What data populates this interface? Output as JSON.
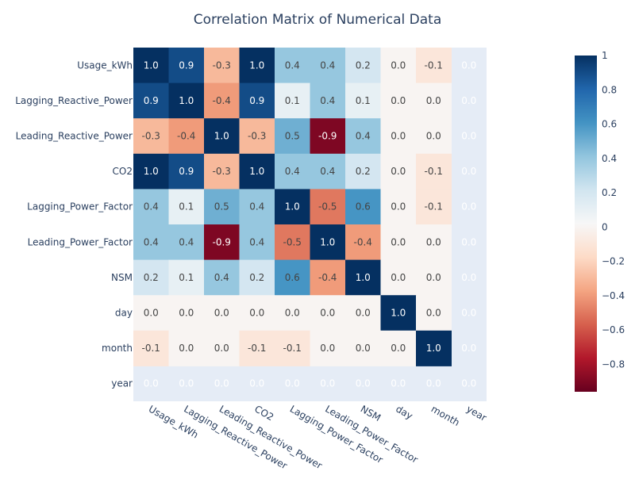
{
  "chart_data": {
    "type": "heatmap",
    "title": "Correlation Matrix of Numerical Data",
    "x_labels": [
      "Usage_kWh",
      "Lagging_Reactive_Power",
      "Leading_Reactive_Power",
      "CO2",
      "Lagging_Power_Factor",
      "Leading_Power_Factor",
      "NSM",
      "day",
      "month",
      "year"
    ],
    "y_labels": [
      "Usage_kWh",
      "Lagging_Reactive_Power",
      "Leading_Reactive_Power",
      "CO2",
      "Lagging_Power_Factor",
      "Leading_Power_Factor",
      "NSM",
      "day",
      "month",
      "year"
    ],
    "values": [
      [
        1.0,
        0.9,
        -0.3,
        1.0,
        0.4,
        0.4,
        0.2,
        0.0,
        -0.1,
        null
      ],
      [
        0.9,
        1.0,
        -0.4,
        0.9,
        0.1,
        0.4,
        0.1,
        0.0,
        0.0,
        null
      ],
      [
        -0.3,
        -0.4,
        1.0,
        -0.3,
        0.5,
        -0.9,
        0.4,
        0.0,
        0.0,
        null
      ],
      [
        1.0,
        0.9,
        -0.3,
        1.0,
        0.4,
        0.4,
        0.2,
        0.0,
        -0.1,
        null
      ],
      [
        0.4,
        0.1,
        0.5,
        0.4,
        1.0,
        -0.5,
        0.6,
        0.0,
        -0.1,
        null
      ],
      [
        0.4,
        0.4,
        -0.9,
        0.4,
        -0.5,
        1.0,
        -0.4,
        0.0,
        0.0,
        null
      ],
      [
        0.2,
        0.1,
        0.4,
        0.2,
        0.6,
        -0.4,
        1.0,
        0.0,
        0.0,
        null
      ],
      [
        0.0,
        0.0,
        0.0,
        0.0,
        0.0,
        0.0,
        0.0,
        1.0,
        0.0,
        null
      ],
      [
        -0.1,
        0.0,
        0.0,
        -0.1,
        -0.1,
        0.0,
        0.0,
        0.0,
        1.0,
        null
      ],
      [
        null,
        null,
        null,
        null,
        null,
        null,
        null,
        null,
        null,
        null
      ]
    ],
    "null_label": "0.0",
    "colorscale": "RdBu",
    "zrange": [
      -0.96,
      1.0
    ],
    "colorbar_ticks": [
      1,
      0.8,
      0.6,
      0.4,
      0.2,
      0,
      -0.2,
      -0.4,
      -0.6,
      -0.8
    ],
    "colorbar_tick_labels": [
      "1",
      "0.8",
      "0.6",
      "0.4",
      "0.2",
      "0",
      "−0.2",
      "−0.4",
      "−0.6",
      "−0.8"
    ],
    "grid": true,
    "legend": "colorbar-right",
    "colors": {
      "title": "#2a3f5f",
      "axis_text": "#2a3f5f",
      "plot_background": "#e5ecf6",
      "label_on_dark": "#ffffff",
      "label_on_light": "#444444"
    }
  }
}
